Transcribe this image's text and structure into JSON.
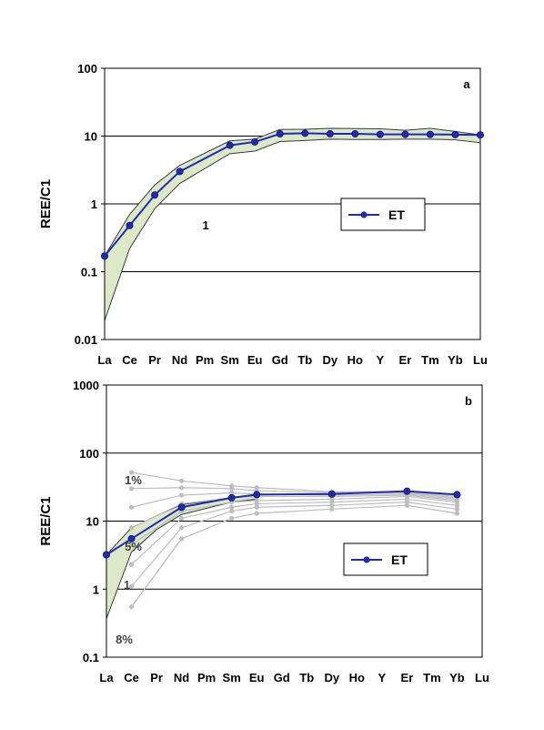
{
  "chart_data": [
    {
      "type": "line",
      "panel_label": "a",
      "ylabel": "REE/C1",
      "yscale": "log",
      "ylim": [
        0.01,
        100
      ],
      "y_ticks": [
        "0.01",
        "0.1",
        "1",
        "10",
        "100"
      ],
      "categories": [
        "La",
        "Ce",
        "Pr",
        "Nd",
        "Pm",
        "Sm",
        "Eu",
        "Gd",
        "Tb",
        "Dy",
        "Ho",
        "Y",
        "Er",
        "Tm",
        "Yb",
        "Lu"
      ],
      "grid": "horizontal",
      "legend_position": "center-right",
      "series": [
        {
          "name": "ET",
          "color": "#1f2bb4",
          "marker": "circle",
          "values": [
            0.17,
            0.48,
            1.35,
            3.0,
            null,
            7.3,
            8.2,
            10.8,
            11.0,
            10.8,
            10.8,
            10.6,
            10.6,
            10.6,
            10.5,
            10.4
          ]
        }
      ],
      "envelope": {
        "fill": "#dce8c8",
        "upper": [
          0.17,
          0.7,
          1.9,
          3.7,
          null,
          8.5,
          9.0,
          12.5,
          12.6,
          13.0,
          12.9,
          12.8,
          12.2,
          13.0,
          11.7,
          10.4
        ],
        "lower": [
          0.019,
          0.22,
          0.85,
          2.0,
          null,
          5.5,
          6.0,
          8.3,
          8.6,
          9.0,
          8.9,
          8.9,
          9.0,
          9.0,
          8.8,
          8.0
        ]
      },
      "annotations": [
        {
          "text": "1",
          "near": "Pr"
        }
      ]
    },
    {
      "type": "line",
      "panel_label": "b",
      "ylabel": "REE/C1",
      "yscale": "log",
      "ylim": [
        0.1,
        1000
      ],
      "y_ticks": [
        "0.1",
        "1",
        "10",
        "100",
        "1000"
      ],
      "categories": [
        "La",
        "Ce",
        "Pr",
        "Nd",
        "Pm",
        "Sm",
        "Eu",
        "Gd",
        "Tb",
        "Dy",
        "Ho",
        "Y",
        "Er",
        "Tm",
        "Yb",
        "Lu"
      ],
      "grid": "horizontal",
      "legend_position": "center-right",
      "series": [
        {
          "name": "ET",
          "color": "#1f2bb4",
          "marker": "circle",
          "values": [
            3.2,
            5.5,
            null,
            16.0,
            null,
            22.0,
            24.5,
            null,
            null,
            25.0,
            null,
            null,
            27.5,
            null,
            24.5,
            null
          ]
        }
      ],
      "model_curves": {
        "color": "#bdbdbd",
        "points": [
          "Ce",
          "Nd",
          "Sm",
          "Eu",
          "Dy",
          "Er",
          "Yb"
        ],
        "curves": [
          [
            52,
            39,
            33,
            31,
            27,
            27,
            23
          ],
          [
            30,
            31,
            30,
            28,
            26,
            26,
            22
          ],
          [
            16,
            24,
            26,
            25,
            24,
            25,
            21
          ],
          [
            8,
            18,
            22,
            23,
            23,
            24,
            20
          ],
          [
            4.5,
            14,
            19,
            20,
            21,
            23,
            19
          ],
          [
            2.3,
            11,
            16,
            18,
            19,
            21,
            17
          ],
          [
            1.1,
            8,
            14,
            16,
            17,
            19,
            15
          ],
          [
            0.55,
            5.5,
            11,
            13,
            15,
            17,
            13
          ]
        ]
      },
      "envelope": {
        "fill": "#dce8c8",
        "upper": [
          3.2,
          8.0,
          12.0,
          17.5,
          null,
          22.0,
          24.0
        ],
        "lower": [
          0.37,
          3.5,
          7.5,
          12.5,
          null,
          19.0,
          21.0
        ]
      },
      "annotations": [
        {
          "text": "1%",
          "near": "Ce"
        },
        {
          "text": "5%",
          "near": "Ce"
        },
        {
          "text": "1",
          "near": "Ce"
        },
        {
          "text": "8%",
          "near": "Ce"
        }
      ]
    }
  ]
}
